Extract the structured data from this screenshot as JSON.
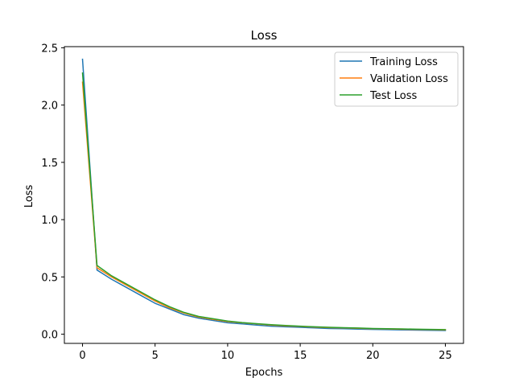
{
  "chart_data": {
    "type": "line",
    "title": "Loss",
    "xlabel": "Epochs",
    "ylabel": "Loss",
    "xlim": [
      -1.25,
      26.25
    ],
    "ylim": [
      -0.08,
      2.51
    ],
    "xticks": [
      0,
      5,
      10,
      15,
      20,
      25
    ],
    "yticks": [
      0.0,
      0.5,
      1.0,
      1.5,
      2.0,
      2.5
    ],
    "xtick_labels": [
      "0",
      "5",
      "10",
      "15",
      "20",
      "25"
    ],
    "ytick_labels": [
      "0.0",
      "0.5",
      "1.0",
      "1.5",
      "2.0",
      "2.5"
    ],
    "grid": false,
    "legend_position": "top-right",
    "x": [
      0,
      1,
      2,
      3,
      4,
      5,
      6,
      7,
      8,
      9,
      10,
      11,
      12,
      13,
      14,
      15,
      16,
      17,
      18,
      19,
      20,
      21,
      22,
      23,
      24,
      25
    ],
    "series": [
      {
        "name": "Training Loss",
        "color": "#1f77b4",
        "values": [
          2.4,
          0.56,
          0.48,
          0.41,
          0.34,
          0.27,
          0.22,
          0.17,
          0.14,
          0.12,
          0.1,
          0.09,
          0.08,
          0.07,
          0.065,
          0.06,
          0.055,
          0.05,
          0.048,
          0.045,
          0.042,
          0.04,
          0.038,
          0.036,
          0.034,
          0.032
        ]
      },
      {
        "name": "Validation Loss",
        "color": "#ff7f0e",
        "values": [
          2.2,
          0.58,
          0.5,
          0.43,
          0.36,
          0.29,
          0.23,
          0.185,
          0.15,
          0.13,
          0.11,
          0.1,
          0.09,
          0.08,
          0.073,
          0.068,
          0.062,
          0.058,
          0.055,
          0.052,
          0.048,
          0.046,
          0.044,
          0.042,
          0.04,
          0.038
        ]
      },
      {
        "name": "Test Loss",
        "color": "#2ca02c",
        "values": [
          2.28,
          0.6,
          0.51,
          0.44,
          0.37,
          0.3,
          0.24,
          0.19,
          0.155,
          0.135,
          0.115,
          0.102,
          0.092,
          0.083,
          0.076,
          0.07,
          0.065,
          0.06,
          0.057,
          0.054,
          0.05,
          0.048,
          0.046,
          0.044,
          0.042,
          0.04
        ]
      }
    ]
  }
}
